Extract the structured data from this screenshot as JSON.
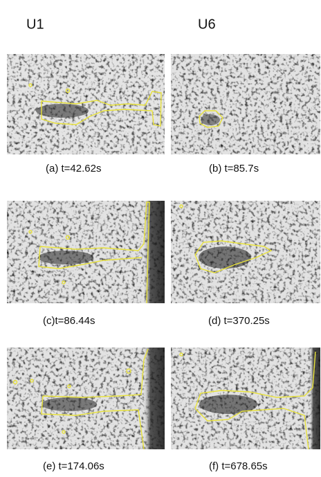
{
  "headers": [
    "U1",
    "U6"
  ],
  "captions": [
    "(a)  t=42.62s",
    "(b) t=85.7s",
    "(c)t=86.44s",
    "(d) t=370.25s",
    "(e) t=174.06s",
    "(f) t=678.65s"
  ]
}
